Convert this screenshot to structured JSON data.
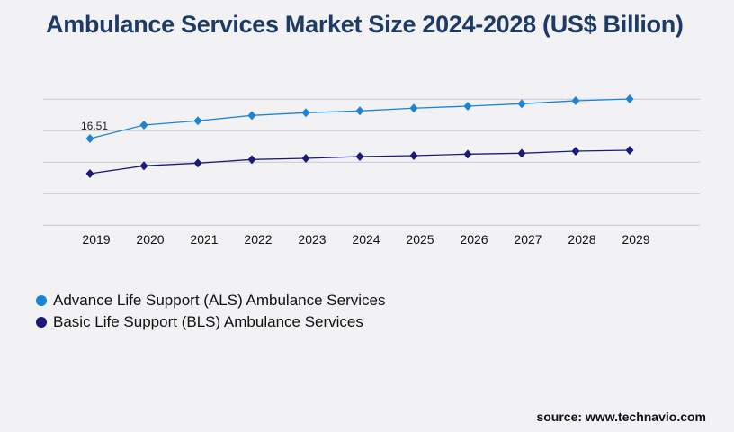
{
  "chart_data": {
    "type": "line",
    "title": "Ambulance Services Market Size 2024-2028 (US$ Billion)",
    "xlabel": "",
    "ylabel": "",
    "categories": [
      "2019",
      "2020",
      "2021",
      "2022",
      "2023",
      "2024",
      "2025",
      "2026",
      "2027",
      "2028",
      "2029"
    ],
    "ylim": [
      0,
      24
    ],
    "grid": true,
    "y_tick_labels_shown": false,
    "legend_position": "bottom-left",
    "series": [
      {
        "name": "Advance Life Support (ALS) Ambulance Services",
        "color": "#1a84d8",
        "values": [
          16.51,
          19.08,
          19.89,
          20.91,
          21.43,
          21.77,
          22.29,
          22.68,
          23.14,
          23.71,
          24.05
        ]
      },
      {
        "name": "Basic Life Support (BLS) Ambulance Services",
        "color": "#1c1a78",
        "values": [
          9.82,
          11.31,
          11.83,
          12.51,
          12.74,
          13.08,
          13.25,
          13.54,
          13.71,
          14.11,
          14.28
        ]
      }
    ],
    "annotations": [
      {
        "series": 0,
        "index": 0,
        "text": "16.51"
      }
    ]
  },
  "source": "source: www.technavio.com"
}
